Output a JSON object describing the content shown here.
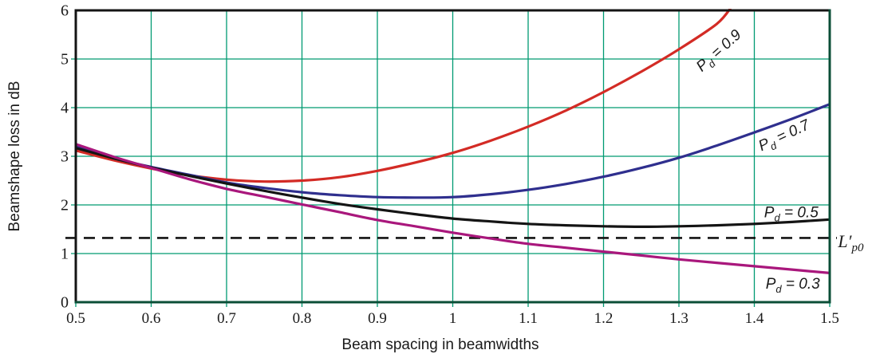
{
  "chart_data": {
    "type": "line",
    "title": "",
    "xlabel": "Beam spacing in beamwidths",
    "ylabel": "Beamshape loss in dB",
    "xlim": [
      0.5,
      1.5
    ],
    "ylim": [
      0,
      6
    ],
    "xticks": [
      "0.5",
      "0.6",
      "0.7",
      "0.8",
      "0.9",
      "1",
      "1.1",
      "1.2",
      "1.3",
      "1.4",
      "1.5"
    ],
    "yticks": [
      "0",
      "1",
      "2",
      "3",
      "4",
      "5",
      "6"
    ],
    "grid": true,
    "legend_position": "inline-labels",
    "colors": {
      "grid": "#009a72",
      "frame_dark": "#141414",
      "frame_green": "#0b4e37",
      "text": "#1a1a1a"
    },
    "series": [
      {
        "id": "pd-0-9",
        "name": "Pd = 0.9",
        "color": "#d32b25",
        "x": [
          0.5,
          0.55,
          0.6,
          0.65,
          0.7,
          0.75,
          0.8,
          0.85,
          0.9,
          0.95,
          1.0,
          1.05,
          1.1,
          1.15,
          1.2,
          1.25,
          1.3,
          1.35,
          1.37
        ],
        "y": [
          3.12,
          2.92,
          2.75,
          2.61,
          2.52,
          2.48,
          2.5,
          2.57,
          2.7,
          2.87,
          3.07,
          3.32,
          3.61,
          3.94,
          4.32,
          4.74,
          5.2,
          5.72,
          6.08
        ]
      },
      {
        "id": "pd-0-7",
        "name": "Pd = 0.7",
        "color": "#2f2f8e",
        "x": [
          0.5,
          0.55,
          0.6,
          0.65,
          0.7,
          0.75,
          0.8,
          0.85,
          0.9,
          0.95,
          1.0,
          1.05,
          1.1,
          1.15,
          1.2,
          1.25,
          1.3,
          1.35,
          1.4,
          1.45,
          1.5
        ],
        "y": [
          3.2,
          2.96,
          2.78,
          2.62,
          2.46,
          2.35,
          2.26,
          2.2,
          2.16,
          2.15,
          2.16,
          2.22,
          2.31,
          2.43,
          2.58,
          2.76,
          2.97,
          3.22,
          3.49,
          3.77,
          4.07
        ]
      },
      {
        "id": "pd-0-5",
        "name": "Pd = 0.5",
        "color": "#141414",
        "x": [
          0.5,
          0.55,
          0.6,
          0.65,
          0.7,
          0.75,
          0.8,
          0.85,
          0.9,
          0.95,
          1.0,
          1.05,
          1.1,
          1.15,
          1.2,
          1.25,
          1.3,
          1.35,
          1.4,
          1.45,
          1.5
        ],
        "y": [
          3.17,
          2.96,
          2.77,
          2.6,
          2.44,
          2.29,
          2.15,
          2.02,
          1.91,
          1.81,
          1.72,
          1.66,
          1.61,
          1.58,
          1.56,
          1.55,
          1.56,
          1.58,
          1.61,
          1.65,
          1.7
        ]
      },
      {
        "id": "pd-0-3",
        "name": "Pd = 0.3",
        "color": "#a9177c",
        "x": [
          0.5,
          0.55,
          0.6,
          0.65,
          0.7,
          0.75,
          0.8,
          0.85,
          0.9,
          0.95,
          1.0,
          1.05,
          1.1,
          1.15,
          1.2,
          1.25,
          1.3,
          1.35,
          1.4,
          1.45,
          1.5
        ],
        "y": [
          3.25,
          2.99,
          2.76,
          2.53,
          2.33,
          2.17,
          2.01,
          1.85,
          1.69,
          1.56,
          1.43,
          1.31,
          1.2,
          1.12,
          1.04,
          0.96,
          0.88,
          0.81,
          0.74,
          0.67,
          0.6
        ]
      }
    ],
    "reference_line": {
      "label": "L′p0",
      "value": 1.32,
      "style": "dashed",
      "color": "#141414"
    },
    "labels": [
      {
        "id": "curve-label-pd-0-9",
        "pre": "P",
        "sub": "d",
        "post": " = 0.9",
        "x": 1.357,
        "y": 5.1,
        "rot": -42,
        "anchor": "middle",
        "size": 19
      },
      {
        "id": "curve-label-pd-0-7",
        "pre": "P",
        "sub": "d",
        "post": " = 0.7",
        "x": 1.442,
        "y": 3.34,
        "rot": -25,
        "anchor": "middle",
        "size": 19
      },
      {
        "id": "curve-label-pd-0-5",
        "pre": "P",
        "sub": "d",
        "post": " = 0.5",
        "x": 1.449,
        "y": 1.75,
        "rot": 0,
        "anchor": "middle",
        "size": 19
      },
      {
        "id": "curve-label-pd-0-3",
        "pre": "P",
        "sub": "d",
        "post": " = 0.3",
        "x": 1.451,
        "y": 0.28,
        "rot": 0,
        "anchor": "middle",
        "size": 19
      },
      {
        "id": "reference-line-label-lp0",
        "pre": "L′",
        "sub": "p0",
        "post": "",
        "x": 1.511,
        "y": 1.13,
        "rot": 0,
        "anchor": "start",
        "size": 22,
        "font": "serif"
      }
    ]
  }
}
